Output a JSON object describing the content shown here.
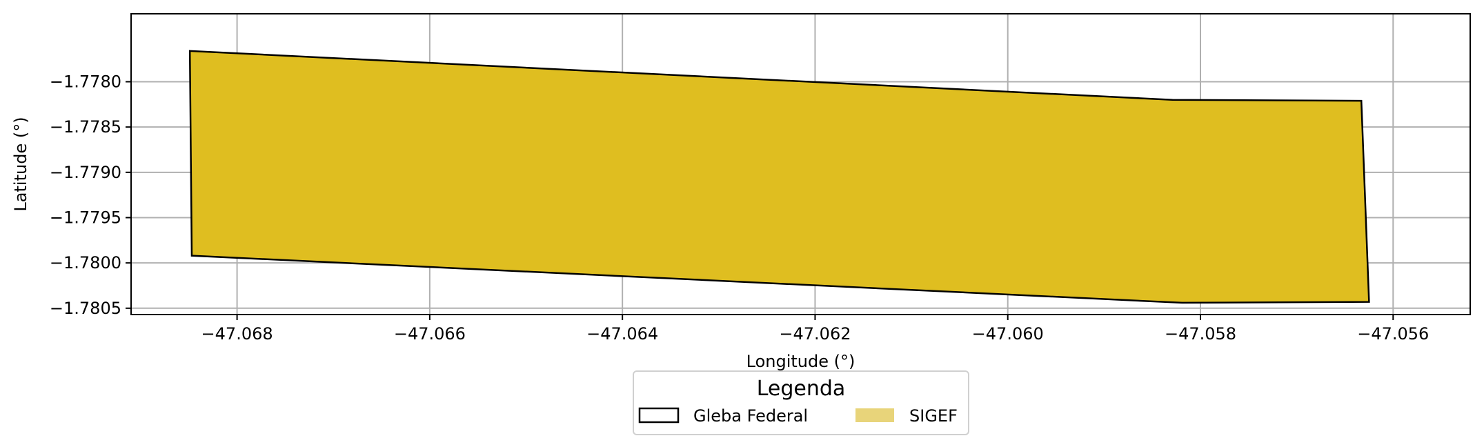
{
  "chart_data": {
    "type": "area",
    "xlabel": "Longitude (°)",
    "ylabel": "Latitude (°)",
    "xlim": [
      -47.0691,
      -47.0552
    ],
    "ylim": [
      -1.78057,
      -1.77725
    ],
    "grid": true,
    "x_ticks": [
      -47.068,
      -47.066,
      -47.064,
      -47.062,
      -47.06,
      -47.058,
      -47.056
    ],
    "x_tick_labels": [
      "−47.068",
      "−47.066",
      "−47.064",
      "−47.062",
      "−47.060",
      "−47.058",
      "−47.056"
    ],
    "y_ticks": [
      -1.778,
      -1.7785,
      -1.779,
      -1.7795,
      -1.78,
      -1.7805
    ],
    "y_tick_labels": [
      "−1.7780",
      "−1.7785",
      "−1.7790",
      "−1.7795",
      "−1.7800",
      "−1.7805"
    ],
    "series": [
      {
        "name": "Gleba Federal",
        "style": "outline",
        "edgecolor": "#000000",
        "polygon": [
          [
            -47.06849,
            -1.77766
          ],
          [
            -47.05829,
            -1.7782
          ],
          [
            -47.05633,
            -1.77821
          ],
          [
            -47.05625,
            -1.78043
          ],
          [
            -47.05819,
            -1.78044
          ],
          [
            -47.06847,
            -1.77992
          ]
        ]
      },
      {
        "name": "SIGEF",
        "style": "fill",
        "facecolor": "#dfbe20",
        "polygon": [
          [
            -47.06849,
            -1.77766
          ],
          [
            -47.05829,
            -1.7782
          ],
          [
            -47.05633,
            -1.77821
          ],
          [
            -47.05625,
            -1.78043
          ],
          [
            -47.05819,
            -1.78044
          ],
          [
            -47.06847,
            -1.77992
          ]
        ]
      }
    ],
    "legend": {
      "title": "Legenda",
      "placement": "bottom-center",
      "entries": [
        {
          "label": "Gleba Federal",
          "kind": "outline",
          "color": "#000000"
        },
        {
          "label": "SIGEF",
          "kind": "fill",
          "color": "#e8d47a"
        }
      ]
    },
    "colors": {
      "fill": "#dfbe20",
      "edge": "#000000",
      "grid": "#b0b0b0",
      "legend_patch": "#e8d47a"
    }
  }
}
